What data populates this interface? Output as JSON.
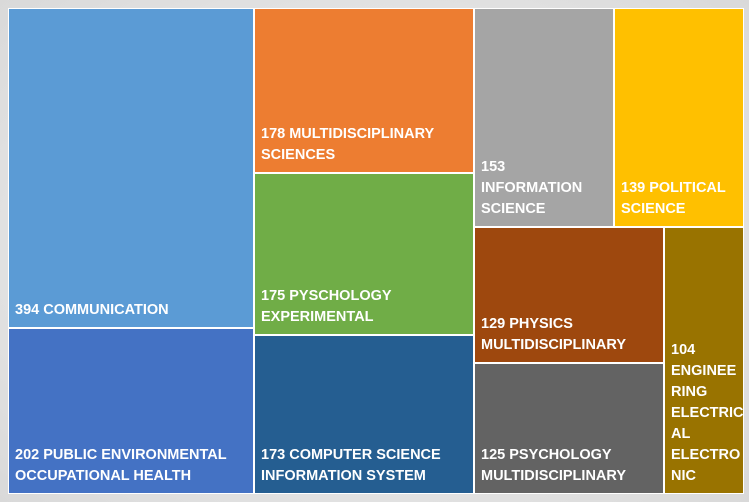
{
  "chart_data": {
    "type": "treemap",
    "tiles": [
      {
        "value": 394,
        "label": "394 COMMUNICATION",
        "color": "#5B9BD5"
      },
      {
        "value": 202,
        "label": "202 PUBLIC ENVIRONMENTAL\nOCCUPATIONAL HEALTH",
        "color": "#4472C4"
      },
      {
        "value": 178,
        "label": "178 MULTIDISCIPLINARY\nSCIENCES",
        "color": "#ED7D31"
      },
      {
        "value": 175,
        "label": "175 PYSCHOLOGY\nEXPERIMENTAL",
        "color": "#70AD47"
      },
      {
        "value": 173,
        "label": "173 COMPUTER SCIENCE\nINFORMATION SYSTEM",
        "color": "#255E91"
      },
      {
        "value": 153,
        "label": "153\nINFORMATION\nSCIENCE",
        "color": "#A5A5A5"
      },
      {
        "value": 139,
        "label": "139 POLITICAL\nSCIENCE",
        "color": "#FFC000"
      },
      {
        "value": 129,
        "label": "129 PHYSICS\nMULTIDISCIPLINARY",
        "color": "#9E480E"
      },
      {
        "value": 125,
        "label": "125 PSYCHOLOGY\nMULTIDISCIPLINARY",
        "color": "#636363"
      },
      {
        "value": 104,
        "label": "104\nENGINEE\nRING\nELECTRIC\nAL\nELECTRO\nNIC",
        "color": "#997300"
      }
    ]
  }
}
